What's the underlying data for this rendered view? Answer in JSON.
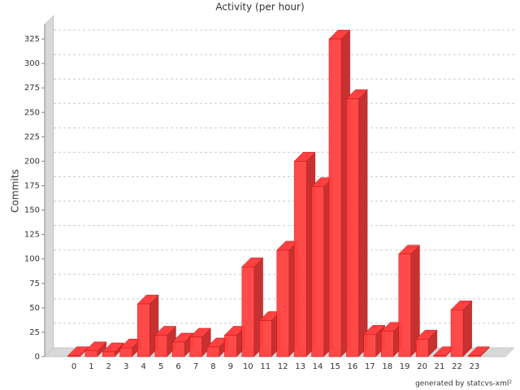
{
  "chart_data": {
    "type": "bar3d",
    "title": "Activity (per hour)",
    "y_label": "Commits",
    "footer": "generated by statcvs-xml²",
    "categories": [
      "0",
      "1",
      "2",
      "3",
      "4",
      "5",
      "6",
      "7",
      "8",
      "9",
      "10",
      "11",
      "12",
      "13",
      "14",
      "15",
      "16",
      "17",
      "18",
      "19",
      "20",
      "21",
      "22",
      "23"
    ],
    "values": [
      1,
      6,
      5,
      9,
      54,
      22,
      15,
      20,
      10,
      22,
      92,
      37,
      109,
      200,
      174,
      325,
      264,
      23,
      26,
      105,
      18,
      1,
      48,
      1
    ],
    "color": "#ff4040",
    "ylim": [
      0,
      340
    ],
    "yticks": [
      0,
      25,
      50,
      75,
      100,
      125,
      150,
      175,
      200,
      225,
      250,
      275,
      300,
      325
    ],
    "grid": true
  }
}
